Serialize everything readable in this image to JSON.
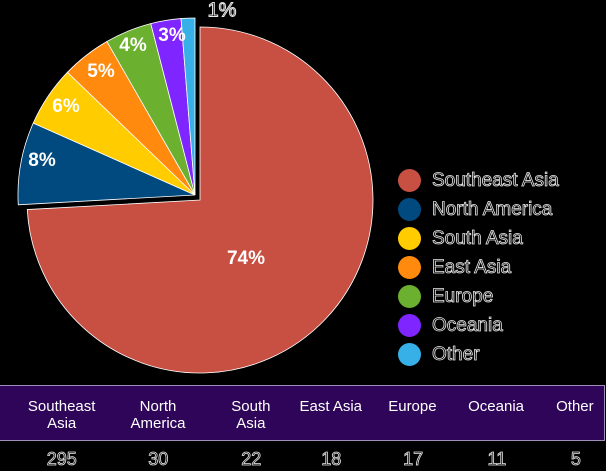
{
  "chart_data": {
    "type": "pie",
    "title": "",
    "categories": [
      "Southeast Asia",
      "North America",
      "South Asia",
      "East Asia",
      "Europe",
      "Oceania",
      "Other"
    ],
    "values": [
      295,
      30,
      22,
      18,
      17,
      11,
      5
    ],
    "percent_labels": [
      "74%",
      "8%",
      "6%",
      "5%",
      "4%",
      "3%",
      "1%"
    ],
    "colors": [
      "#C85042",
      "#004A80",
      "#FFCC00",
      "#FF8A0E",
      "#6CB030",
      "#7F25FF",
      "#36B0E6"
    ],
    "exploded": [
      "North America",
      "South Asia",
      "East Asia",
      "Europe",
      "Oceania",
      "Other"
    ],
    "legend_position": "right"
  },
  "legend": [
    {
      "label": "Southeast Asia",
      "color": "#C85042"
    },
    {
      "label": "North America",
      "color": "#004A80"
    },
    {
      "label": "South Asia",
      "color": "#FFCC00"
    },
    {
      "label": "East Asia",
      "color": "#FF8A0E"
    },
    {
      "label": "Europe",
      "color": "#6CB030"
    },
    {
      "label": "Oceania",
      "color": "#7F25FF"
    },
    {
      "label": "Other",
      "color": "#36B0E6"
    }
  ],
  "table": {
    "headers": [
      "Southeast Asia",
      "North America",
      "South Asia",
      "East Asia",
      "Europe",
      "Oceania",
      "Other"
    ],
    "values": [
      "295",
      "30",
      "22",
      "18",
      "17",
      "11",
      "5"
    ],
    "header_bg": "#2E0558"
  },
  "labels": {
    "l0": "74%",
    "l1": "8%",
    "l2": "6%",
    "l3": "5%",
    "l4": "4%",
    "l5": "3%",
    "l6": "1%"
  }
}
